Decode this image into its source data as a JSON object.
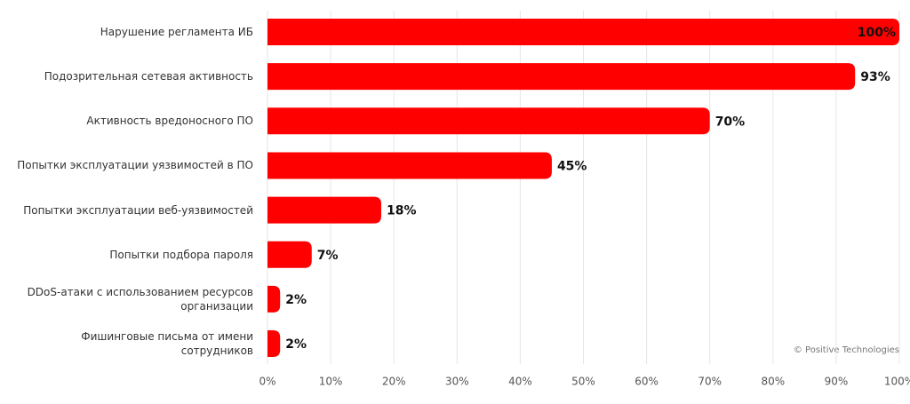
{
  "chart_data": {
    "type": "barh",
    "categories": [
      "Нарушение регламента ИБ",
      "Подозрительная сетевая активность",
      "Активность вредоносного ПО",
      "Попытки эксплуатации уязвимостей в ПО",
      "Попытки эксплуатации веб-уязвимостей",
      "Попытки подбора пароля",
      "DDoS-атаки с использованием ресурсов организации",
      "Фишинговые письма от имени сотрудников"
    ],
    "values": [
      100,
      93,
      70,
      45,
      18,
      7,
      2,
      2
    ],
    "value_labels": [
      "100%",
      "93%",
      "70%",
      "45%",
      "18%",
      "7%",
      "2%",
      "2%"
    ],
    "color": "#ff0000",
    "xlim": [
      0,
      100
    ],
    "xticks": [
      {
        "value": 0,
        "label": "0%"
      },
      {
        "value": 10,
        "label": "10%"
      },
      {
        "value": 20,
        "label": "20%"
      },
      {
        "value": 30,
        "label": "30%"
      },
      {
        "value": 40,
        "label": "40%"
      },
      {
        "value": 50,
        "label": "50%"
      },
      {
        "value": 60,
        "label": "60%"
      },
      {
        "value": 70,
        "label": "70%"
      },
      {
        "value": 80,
        "label": "80%"
      },
      {
        "value": 90,
        "label": "90%"
      },
      {
        "value": 100,
        "label": "100%"
      }
    ],
    "grid": true,
    "source": "© Positive Technologies"
  }
}
